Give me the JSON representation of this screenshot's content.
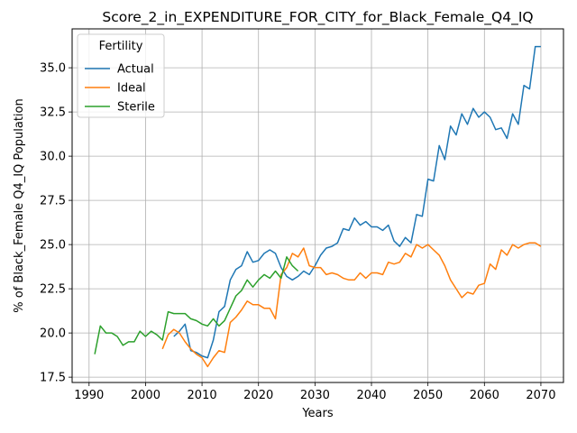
{
  "chart_data": {
    "type": "line",
    "title": "Score_2_in_EXPENDITURE_FOR_CITY_for_Black_Female_Q4_IQ",
    "xlabel": "Years",
    "ylabel": "% of Black_Female Q4_IQ Population",
    "xlim": [
      1987,
      2074
    ],
    "ylim": [
      17.2,
      37.2
    ],
    "xticks": [
      1990,
      2000,
      2010,
      2020,
      2030,
      2040,
      2050,
      2060,
      2070
    ],
    "yticks": [
      17.5,
      20.0,
      22.5,
      25.0,
      27.5,
      30.0,
      32.5,
      35.0
    ],
    "grid": true,
    "legend": {
      "title": "Fertility",
      "placement": "top-left"
    },
    "series": [
      {
        "name": "Actual",
        "color": "#1f77b4",
        "x": [
          2005,
          2006,
          2007,
          2008,
          2009,
          2010,
          2011,
          2012,
          2013,
          2014,
          2015,
          2016,
          2017,
          2018,
          2019,
          2020,
          2021,
          2022,
          2023,
          2024,
          2025,
          2026,
          2027,
          2028,
          2029,
          2030,
          2031,
          2032,
          2033,
          2034,
          2035,
          2036,
          2037,
          2038,
          2039,
          2040,
          2041,
          2042,
          2043,
          2044,
          2045,
          2046,
          2047,
          2048,
          2049,
          2050,
          2051,
          2052,
          2053,
          2054,
          2055,
          2056,
          2057,
          2058,
          2059,
          2060,
          2061,
          2062,
          2063,
          2064,
          2065,
          2066,
          2067,
          2068,
          2069,
          2070
        ],
        "y": [
          19.8,
          20.1,
          20.5,
          19.0,
          18.9,
          18.7,
          18.6,
          19.6,
          21.2,
          21.5,
          23.0,
          23.6,
          23.8,
          24.6,
          24.0,
          24.1,
          24.5,
          24.7,
          24.5,
          23.7,
          23.2,
          23.0,
          23.2,
          23.5,
          23.3,
          23.8,
          24.4,
          24.8,
          24.9,
          25.1,
          25.9,
          25.8,
          26.5,
          26.1,
          26.3,
          26.0,
          26.0,
          25.8,
          26.1,
          25.2,
          24.9,
          25.4,
          25.1,
          26.7,
          26.6,
          28.7,
          28.6,
          30.6,
          29.8,
          31.7,
          31.2,
          32.4,
          31.8,
          32.7,
          32.2,
          32.5,
          32.2,
          31.5,
          31.6,
          31.0,
          32.4,
          31.8,
          34.0,
          33.8,
          36.2,
          36.2
        ]
      },
      {
        "name": "Ideal",
        "color": "#ff7f0e",
        "x": [
          2003,
          2004,
          2005,
          2006,
          2007,
          2008,
          2009,
          2010,
          2011,
          2012,
          2013,
          2014,
          2015,
          2016,
          2017,
          2018,
          2019,
          2020,
          2021,
          2022,
          2023,
          2024,
          2025,
          2026,
          2027,
          2028,
          2029,
          2030,
          2031,
          2032,
          2033,
          2034,
          2035,
          2036,
          2037,
          2038,
          2039,
          2040,
          2041,
          2042,
          2043,
          2044,
          2045,
          2046,
          2047,
          2048,
          2049,
          2050,
          2051,
          2052,
          2053,
          2054,
          2055,
          2056,
          2057,
          2058,
          2059,
          2060,
          2061,
          2062,
          2063,
          2064,
          2065,
          2066,
          2067,
          2068,
          2069,
          2070
        ],
        "y": [
          19.1,
          19.9,
          20.2,
          20.0,
          19.5,
          19.1,
          18.8,
          18.6,
          18.1,
          18.6,
          19.0,
          18.9,
          20.6,
          20.9,
          21.3,
          21.8,
          21.6,
          21.6,
          21.4,
          21.4,
          20.8,
          23.3,
          23.7,
          24.5,
          24.3,
          24.8,
          23.8,
          23.7,
          23.7,
          23.3,
          23.4,
          23.3,
          23.1,
          23.0,
          23.0,
          23.4,
          23.1,
          23.4,
          23.4,
          23.3,
          24.0,
          23.9,
          24.0,
          24.5,
          24.3,
          25.0,
          24.8,
          25.0,
          24.7,
          24.4,
          23.8,
          23.0,
          22.5,
          22.0,
          22.3,
          22.2,
          22.7,
          22.8,
          23.9,
          23.6,
          24.7,
          24.4,
          25.0,
          24.8,
          25.0,
          25.1,
          25.1,
          24.9
        ]
      },
      {
        "name": "Sterile",
        "color": "#2ca02c",
        "x": [
          1991,
          1992,
          1993,
          1994,
          1995,
          1996,
          1997,
          1998,
          1999,
          2000,
          2001,
          2002,
          2003,
          2004,
          2005,
          2006,
          2007,
          2008,
          2009,
          2010,
          2011,
          2012,
          2013,
          2014,
          2015,
          2016,
          2017,
          2018,
          2019,
          2020,
          2021,
          2022,
          2023,
          2024,
          2025,
          2026,
          2027
        ],
        "y": [
          18.8,
          20.4,
          20.0,
          20.0,
          19.8,
          19.3,
          19.5,
          19.5,
          20.1,
          19.8,
          20.1,
          19.9,
          19.6,
          21.2,
          21.1,
          21.1,
          21.1,
          20.8,
          20.7,
          20.5,
          20.4,
          20.8,
          20.4,
          20.7,
          21.4,
          22.1,
          22.4,
          23.0,
          22.6,
          23.0,
          23.3,
          23.1,
          23.5,
          23.1,
          24.3,
          23.8,
          23.5
        ]
      }
    ]
  }
}
